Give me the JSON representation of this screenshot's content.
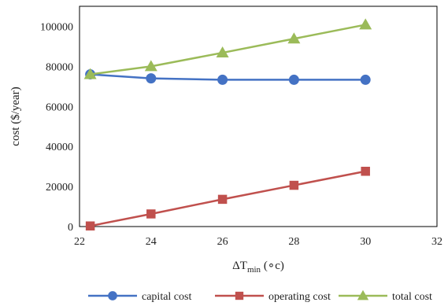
{
  "chart_data": {
    "type": "line",
    "xlabel_main": "ΔT",
    "xlabel_sub": "min",
    "xlabel_unit": " (∘c)",
    "ylabel": "cost ($/year)",
    "xlim": [
      22,
      32
    ],
    "ylim": [
      0,
      110000
    ],
    "xticks": [
      22,
      24,
      26,
      28,
      30,
      32
    ],
    "yticks": [
      0,
      20000,
      40000,
      60000,
      80000,
      100000
    ],
    "grid": false,
    "legend_position": "bottom",
    "series": [
      {
        "name": "capital cost",
        "color": "#4472c4",
        "marker": "circle",
        "x": [
          22.3,
          24,
          26,
          28,
          30
        ],
        "y": [
          76000,
          74000,
          73300,
          73300,
          73300
        ]
      },
      {
        "name": "operating cost",
        "color": "#c0504d",
        "marker": "square",
        "x": [
          22.3,
          24,
          26,
          28,
          30
        ],
        "y": [
          300,
          6300,
          13600,
          20600,
          27600
        ]
      },
      {
        "name": "total cost",
        "color": "#9bbb59",
        "marker": "triangle",
        "x": [
          22.3,
          24,
          26,
          28,
          30
        ],
        "y": [
          76000,
          80000,
          86800,
          93800,
          100800
        ]
      }
    ]
  }
}
